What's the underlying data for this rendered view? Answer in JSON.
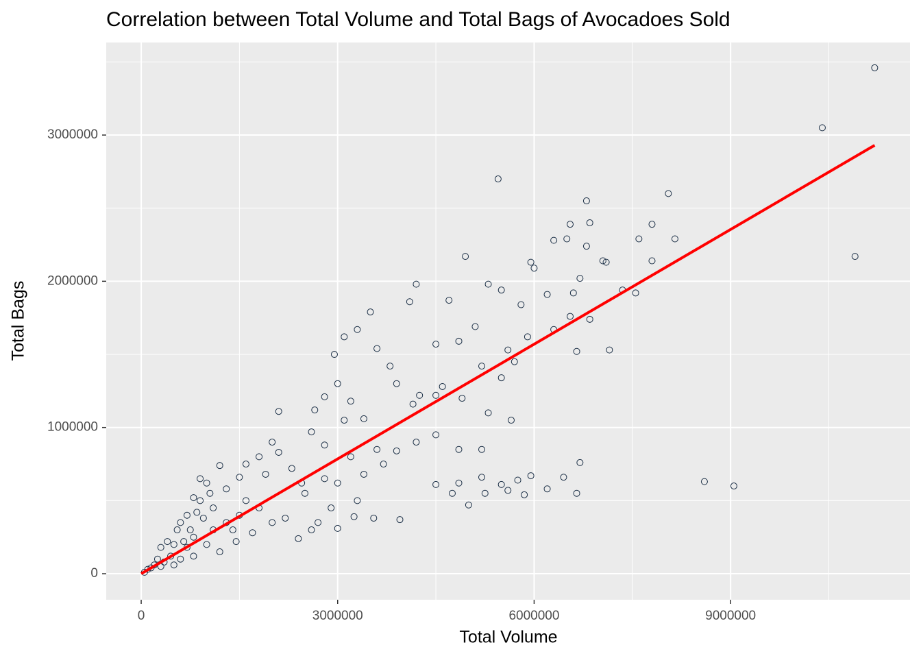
{
  "chart_data": {
    "type": "scatter",
    "title": "Correlation between Total Volume and Total Bags of Avocadoes Sold",
    "x_label": "Total Volume",
    "y_label": "Total Bags",
    "color": "#1a2e45",
    "x": [
      11200000,
      10400000,
      10900000,
      8600000,
      9050000,
      5450000,
      8050000,
      7800000,
      8150000,
      7600000,
      7800000,
      7550000,
      7350000,
      7100000,
      7050000,
      6800000,
      6850000,
      6700000,
      6600000,
      6500000,
      6550000,
      6300000,
      6000000,
      5950000,
      6800000,
      4950000,
      4200000,
      4100000,
      4700000,
      5300000,
      5500000,
      5600000,
      5100000,
      5800000,
      6200000,
      6300000,
      6550000,
      6850000,
      7150000,
      6650000,
      5900000,
      5700000,
      5500000,
      5200000,
      4850000,
      4500000,
      4600000,
      4250000,
      4150000,
      3900000,
      3800000,
      3600000,
      3500000,
      3300000,
      3100000,
      2950000,
      3000000,
      3200000,
      3100000,
      3400000,
      2800000,
      2650000,
      2600000,
      2800000,
      3200000,
      3600000,
      3900000,
      4200000,
      4500000,
      4850000,
      5200000,
      5650000,
      5300000,
      4900000,
      4500000,
      4850000,
      4750000,
      5250000,
      5200000,
      5600000,
      5750000,
      5950000,
      6200000,
      6450000,
      6700000,
      6650000,
      5000000,
      4500000,
      5500000,
      5850000,
      3950000,
      3550000,
      3250000,
      3000000,
      2700000,
      2600000,
      2400000,
      2200000,
      2450000,
      2300000,
      2100000,
      2000000,
      2100000,
      1800000,
      1600000,
      1900000,
      1500000,
      1200000,
      1000000,
      900000,
      1300000,
      1600000,
      1800000,
      2000000,
      1700000,
      1450000,
      1200000,
      1500000,
      1100000,
      900000,
      800000,
      950000,
      700000,
      600000,
      550000,
      800000,
      1000000,
      1100000,
      700000,
      500000,
      400000,
      300000,
      450000,
      350000,
      600000,
      800000,
      250000,
      200000,
      150000,
      100000,
      50000,
      300000,
      500000,
      650000,
      750000,
      1300000,
      1400000,
      850000,
      1050000,
      2500000,
      2800000,
      3000000,
      3400000,
      3700000,
      2900000,
      3300000
    ],
    "values": [
      3460000,
      3050000,
      2170000,
      630000,
      600000,
      2700000,
      2600000,
      2390000,
      2290000,
      2290000,
      2140000,
      1920000,
      1940000,
      2130000,
      2140000,
      2550000,
      2400000,
      2020000,
      1920000,
      2290000,
      2390000,
      2280000,
      2090000,
      2130000,
      2240000,
      2170000,
      1980000,
      1860000,
      1870000,
      1980000,
      1940000,
      1530000,
      1690000,
      1840000,
      1910000,
      1670000,
      1760000,
      1740000,
      1530000,
      1520000,
      1620000,
      1450000,
      1340000,
      1420000,
      1590000,
      1570000,
      1280000,
      1220000,
      1160000,
      1300000,
      1420000,
      1540000,
      1790000,
      1670000,
      1620000,
      1500000,
      1300000,
      1180000,
      1050000,
      1060000,
      1210000,
      1120000,
      970000,
      880000,
      800000,
      850000,
      840000,
      900000,
      950000,
      850000,
      850000,
      1050000,
      1100000,
      1200000,
      1220000,
      620000,
      550000,
      550000,
      660000,
      570000,
      640000,
      670000,
      580000,
      660000,
      760000,
      550000,
      470000,
      610000,
      610000,
      540000,
      370000,
      380000,
      390000,
      310000,
      350000,
      300000,
      240000,
      380000,
      620000,
      720000,
      830000,
      900000,
      1110000,
      800000,
      750000,
      680000,
      660000,
      740000,
      620000,
      650000,
      580000,
      500000,
      450000,
      350000,
      280000,
      220000,
      150000,
      400000,
      450000,
      500000,
      520000,
      380000,
      400000,
      350000,
      300000,
      250000,
      200000,
      300000,
      180000,
      200000,
      220000,
      180000,
      120000,
      80000,
      100000,
      120000,
      100000,
      60000,
      40000,
      30000,
      10000,
      50000,
      60000,
      220000,
      300000,
      350000,
      300000,
      420000,
      550000,
      550000,
      650000,
      620000,
      680000,
      750000,
      450000,
      500000
    ],
    "trend": {
      "color": "#ff0000",
      "x": [
        0,
        11200000
      ],
      "y": [
        0,
        2930000
      ]
    },
    "xlim": [
      -534000,
      11740000
    ],
    "ylim": [
      -178000,
      3633000
    ],
    "xticks": [
      0,
      3000000,
      6000000,
      9000000
    ],
    "yticks": [
      0,
      1000000,
      2000000,
      3000000
    ],
    "grid": true
  }
}
